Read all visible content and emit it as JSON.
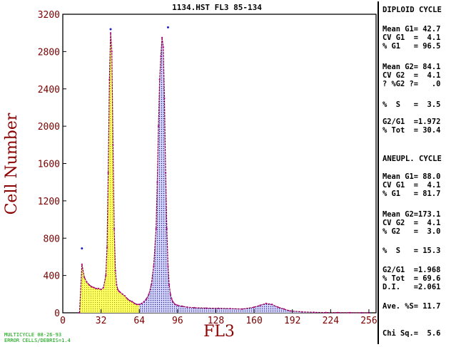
{
  "chart_data": {
    "type": "area",
    "title": "1134.HST FL3 85-134",
    "xlabel": "FL3",
    "ylabel": "Cell Number",
    "xlim": [
      0,
      262
    ],
    "ylim": [
      0,
      3200
    ],
    "x_ticks": [
      0,
      32,
      64,
      96,
      128,
      160,
      192,
      224,
      256
    ],
    "y_ticks": [
      0,
      400,
      800,
      1200,
      1600,
      2000,
      2400,
      2800,
      3200
    ],
    "grid": false,
    "histogram": {
      "x": [
        14,
        16,
        18,
        20,
        22,
        24,
        26,
        28,
        30,
        32,
        34,
        36,
        37,
        38,
        39,
        40,
        41,
        42,
        43,
        44,
        45,
        46,
        47,
        48,
        50,
        52,
        54,
        56,
        58,
        60,
        62,
        64,
        66,
        68,
        70,
        72,
        74,
        76,
        78,
        79,
        80,
        81,
        82,
        83,
        84,
        85,
        86,
        87,
        88,
        89,
        90,
        91,
        92,
        94,
        96,
        100,
        104,
        110,
        120,
        130,
        140,
        150,
        160,
        165,
        170,
        175,
        180,
        185,
        190,
        200,
        210,
        220,
        230,
        240,
        250,
        256
      ],
      "y": [
        0,
        520,
        380,
        330,
        300,
        280,
        270,
        260,
        260,
        250,
        270,
        400,
        700,
        1500,
        2500,
        3000,
        2800,
        1800,
        900,
        450,
        300,
        250,
        230,
        220,
        200,
        180,
        150,
        130,
        120,
        100,
        90,
        90,
        100,
        120,
        150,
        200,
        300,
        500,
        900,
        1400,
        2000,
        2500,
        2750,
        2950,
        2850,
        2300,
        1500,
        900,
        500,
        300,
        200,
        150,
        120,
        90,
        80,
        70,
        60,
        55,
        50,
        48,
        45,
        40,
        60,
        80,
        100,
        90,
        60,
        40,
        20,
        10,
        5,
        3,
        2,
        1,
        0,
        0
      ]
    },
    "peak_markers": [
      {
        "x": 40,
        "y": 3040
      },
      {
        "x": 88,
        "y": 3060
      },
      {
        "x": 16,
        "y": 690
      }
    ]
  },
  "panel": {
    "diploid": {
      "heading": "DIPLOID CYCLE",
      "lines": [
        "Mean G1= 42.7",
        "CV G1  =  4.1",
        "% G1   = 96.5",
        "Mean G2= 84.1",
        "CV G2  =  4.1",
        "? %G2 ?=   .0",
        "%  S   =  3.5",
        "G2/G1  =1.972",
        "% Tot  = 30.4"
      ]
    },
    "aneuploid": {
      "heading": "ANEUPL. CYCLE",
      "lines": [
        "Mean G1= 88.0",
        "CV G1  =  4.1",
        "% G1   = 81.7",
        "Mean G2=173.1",
        "CV G2  =  4.1",
        "% G2   =  3.0",
        "%  S   = 15.3",
        "G2/G1  =1.968",
        "% Tot  = 69.6",
        "D.I.   =2.061",
        "Ave. %S= 11.7",
        "Chi Sq.=  5.6"
      ]
    }
  },
  "footer": {
    "line1": "MULTICYCLE 08-26-93",
    "line2": "ERROR CELLS/DEBRIS=1.4"
  },
  "colors": {
    "frame": "#000000",
    "tick_text": "#7a0000",
    "axis_label": "#8b0000",
    "fill_diploid": "#ffff66",
    "fill_aneuploid": "#c8c8ff",
    "fit_line": "#8b004a",
    "markers": "#2020c0",
    "footer": "#00a000"
  }
}
